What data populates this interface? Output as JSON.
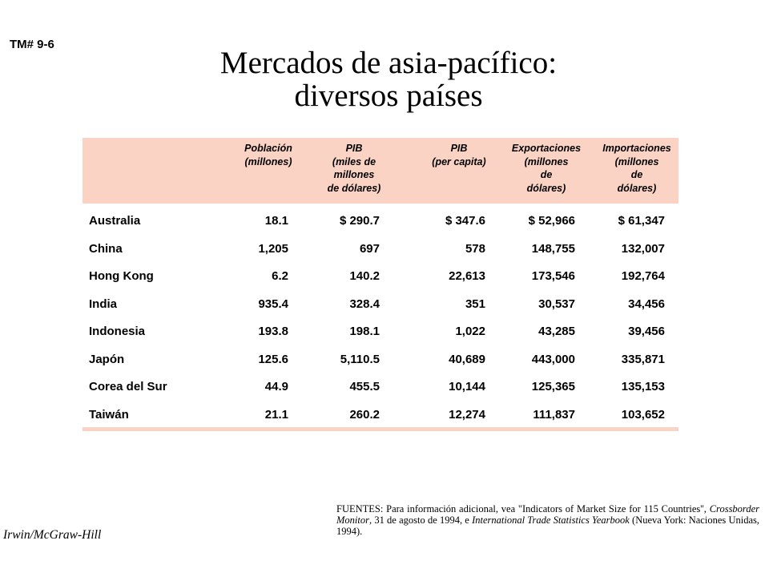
{
  "slide_id": "TM# 9-6",
  "title_line1": "Mercados de asia-pacífico:",
  "title_line2": "diversos países",
  "columns": [
    "Población\n(millones)",
    "PIB\n(miles de\nmillones\nde dólares)",
    "PIB\n(per capita)",
    "Exportaciones\n(millones\nde\ndólares)",
    "Importaciones\n(millones\nde\ndólares)"
  ],
  "rows": [
    {
      "country": "Australia",
      "poblacion": "18.1",
      "pib": "$ 290.7",
      "pib_pc": "$ 347.6",
      "export": "$ 52,966",
      "import": "$ 61,347"
    },
    {
      "country": "China",
      "poblacion": "1,205",
      "pib": "697",
      "pib_pc": "578",
      "export": "148,755",
      "import": "132,007"
    },
    {
      "country": "Hong Kong",
      "poblacion": "6.2",
      "pib": "140.2",
      "pib_pc": "22,613",
      "export": "173,546",
      "import": "192,764"
    },
    {
      "country": "India",
      "poblacion": "935.4",
      "pib": "328.4",
      "pib_pc": "351",
      "export": "30,537",
      "import": "34,456"
    },
    {
      "country": "Indonesia",
      "poblacion": "193.8",
      "pib": "198.1",
      "pib_pc": "1,022",
      "export": "43,285",
      "import": "39,456"
    },
    {
      "country": "Japón",
      "poblacion": "125.6",
      "pib": "5,110.5",
      "pib_pc": "40,689",
      "export": "443,000",
      "import": "335,871"
    },
    {
      "country": "Corea del Sur",
      "poblacion": "44.9",
      "pib": "455.5",
      "pib_pc": "10,144",
      "export": "125,365",
      "import": "135,153"
    },
    {
      "country": "Taiwán",
      "poblacion": "21.1",
      "pib": "260.2",
      "pib_pc": "12,274",
      "export": "111,837",
      "import": "103,652"
    }
  ],
  "sources": {
    "prefix": "FUENTES: Para información adicional, vea \"Indicators of Market Size for 115 Countries'', ",
    "pub1": "Crossborder Monitor",
    "middle": ", 31 de agosto de 1994, e ",
    "pub2": "International Trade Statistics Yearbook",
    "suffix": " (Nueva York: Naciones Unidas, 1994)."
  },
  "publisher": "Irwin/McGraw-Hill",
  "colors": {
    "header_band": "#fbd3c5"
  }
}
